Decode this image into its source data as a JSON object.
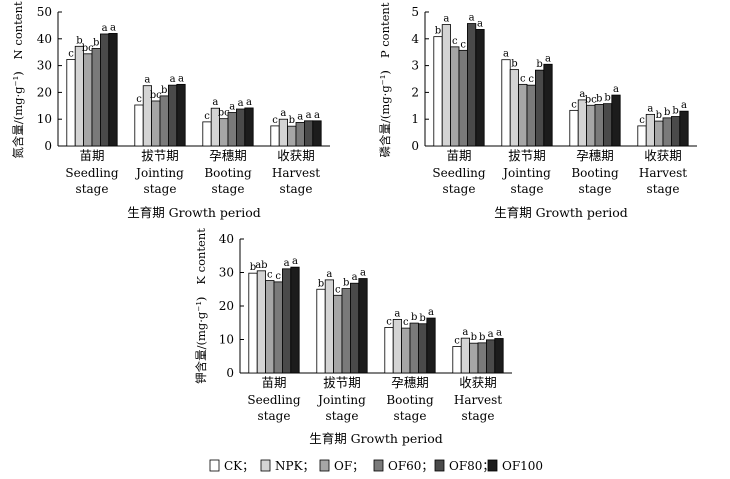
{
  "chart_data": [
    {
      "type": "bar",
      "ylabel_cn": "氮含量/(mg·g⁻¹)",
      "ylabel_en": "N content",
      "ylim": [
        0,
        50
      ],
      "yticks": [
        0,
        10,
        20,
        30,
        40,
        50
      ],
      "categories": [
        {
          "cn": "苗期",
          "en1": "Seedling",
          "en2": "stage"
        },
        {
          "cn": "拔节期",
          "en1": "Jointing",
          "en2": "stage"
        },
        {
          "cn": "孕穗期",
          "en1": "Booting",
          "en2": "stage"
        },
        {
          "cn": "收获期",
          "en1": "Harvest",
          "en2": "stage"
        }
      ],
      "xlabel": "生育期 Growth period",
      "series": [
        {
          "name": "CK",
          "values": [
            32.3,
            15.3,
            9.0,
            7.5
          ],
          "labels": [
            "c",
            "c",
            "c",
            "c"
          ]
        },
        {
          "name": "NPK",
          "values": [
            37.2,
            22.5,
            14.1,
            10.0
          ],
          "labels": [
            "b",
            "a",
            "a",
            "a"
          ]
        },
        {
          "name": "OF",
          "values": [
            34.4,
            16.8,
            10.2,
            7.4
          ],
          "labels": [
            "bc",
            "bc",
            "bc",
            "b"
          ]
        },
        {
          "name": "OF60",
          "values": [
            36.4,
            18.7,
            12.5,
            8.8
          ],
          "labels": [
            "b",
            "b",
            "a",
            "a"
          ]
        },
        {
          "name": "OF80",
          "values": [
            41.8,
            22.7,
            13.8,
            9.4
          ],
          "labels": [
            "a",
            "a",
            "a",
            "a"
          ]
        },
        {
          "name": "OF100",
          "values": [
            42.0,
            23.0,
            14.2,
            9.4
          ],
          "labels": [
            "a",
            "a",
            "a",
            "a"
          ]
        }
      ]
    },
    {
      "type": "bar",
      "ylabel_cn": "磷含量/(mg·g⁻¹)",
      "ylabel_en": "P content",
      "ylim": [
        0,
        5
      ],
      "yticks": [
        0,
        1,
        2,
        3,
        4,
        5
      ],
      "categories": [
        {
          "cn": "苗期",
          "en1": "Seedling",
          "en2": "stage"
        },
        {
          "cn": "拔节期",
          "en1": "Jointing",
          "en2": "stage"
        },
        {
          "cn": "孕穗期",
          "en1": "Booting",
          "en2": "stage"
        },
        {
          "cn": "收获期",
          "en1": "Harvest",
          "en2": "stage"
        }
      ],
      "xlabel": "生育期 Growth period",
      "series": [
        {
          "name": "CK",
          "values": [
            4.08,
            3.22,
            1.33,
            0.75
          ],
          "labels": [
            "b",
            "a",
            "c",
            "c"
          ]
        },
        {
          "name": "NPK",
          "values": [
            4.53,
            2.85,
            1.72,
            1.18
          ],
          "labels": [
            "a",
            "b",
            "a",
            "a"
          ]
        },
        {
          "name": "OF",
          "values": [
            3.7,
            2.3,
            1.52,
            0.93
          ],
          "labels": [
            "c",
            "c",
            "bc",
            "b"
          ]
        },
        {
          "name": "OF60",
          "values": [
            3.57,
            2.27,
            1.55,
            1.05
          ],
          "labels": [
            "c",
            "c",
            "b",
            "b"
          ]
        },
        {
          "name": "OF80",
          "values": [
            4.57,
            2.83,
            1.58,
            1.1
          ],
          "labels": [
            "a",
            "b",
            "b",
            "b"
          ]
        },
        {
          "name": "OF100",
          "values": [
            4.35,
            3.05,
            1.9,
            1.3
          ],
          "labels": [
            "a",
            "a",
            "a",
            "a"
          ]
        }
      ]
    },
    {
      "type": "bar",
      "ylabel_cn": "钾含量/(mg·g⁻¹)",
      "ylabel_en": "K content",
      "ylim": [
        0,
        40
      ],
      "yticks": [
        0,
        10,
        20,
        30,
        40
      ],
      "categories": [
        {
          "cn": "苗期",
          "en1": "Seedling",
          "en2": "stage"
        },
        {
          "cn": "拔节期",
          "en1": "Jointing",
          "en2": "stage"
        },
        {
          "cn": "孕穗期",
          "en1": "Booting",
          "en2": "stage"
        },
        {
          "cn": "收获期",
          "en1": "Harvest",
          "en2": "stage"
        }
      ],
      "xlabel": "生育期 Growth period",
      "series": [
        {
          "name": "CK",
          "values": [
            29.8,
            25.0,
            13.6,
            7.9
          ],
          "labels": [
            "b",
            "b",
            "c",
            "c"
          ]
        },
        {
          "name": "NPK",
          "values": [
            30.5,
            27.8,
            16.0,
            10.4
          ],
          "labels": [
            "ab",
            "a",
            "a",
            "a"
          ]
        },
        {
          "name": "OF",
          "values": [
            27.6,
            23.2,
            13.4,
            8.9
          ],
          "labels": [
            "c",
            "c",
            "c",
            "b"
          ]
        },
        {
          "name": "OF60",
          "values": [
            27.2,
            25.2,
            14.9,
            9.0
          ],
          "labels": [
            "c",
            "b",
            "b",
            "b"
          ]
        },
        {
          "name": "OF80",
          "values": [
            31.1,
            26.8,
            14.7,
            9.9
          ],
          "labels": [
            "a",
            "a",
            "b",
            "a"
          ]
        },
        {
          "name": "OF100",
          "values": [
            31.6,
            28.2,
            16.4,
            10.3
          ],
          "labels": [
            "a",
            "a",
            "a",
            "a"
          ]
        }
      ]
    }
  ],
  "legend": [
    {
      "name": "CK",
      "suffix": "；",
      "color": "#ffffff"
    },
    {
      "name": "NPK",
      "suffix": "；",
      "color": "#d4d4d4"
    },
    {
      "name": "OF",
      "suffix": "；",
      "color": "#a6a6a6"
    },
    {
      "name": "OF60",
      "suffix": "；",
      "color": "#7a7a7a"
    },
    {
      "name": "OF80",
      "suffix": "；",
      "color": "#4a4a4a"
    },
    {
      "name": "OF100",
      "suffix": "",
      "color": "#1c1c1c"
    }
  ]
}
